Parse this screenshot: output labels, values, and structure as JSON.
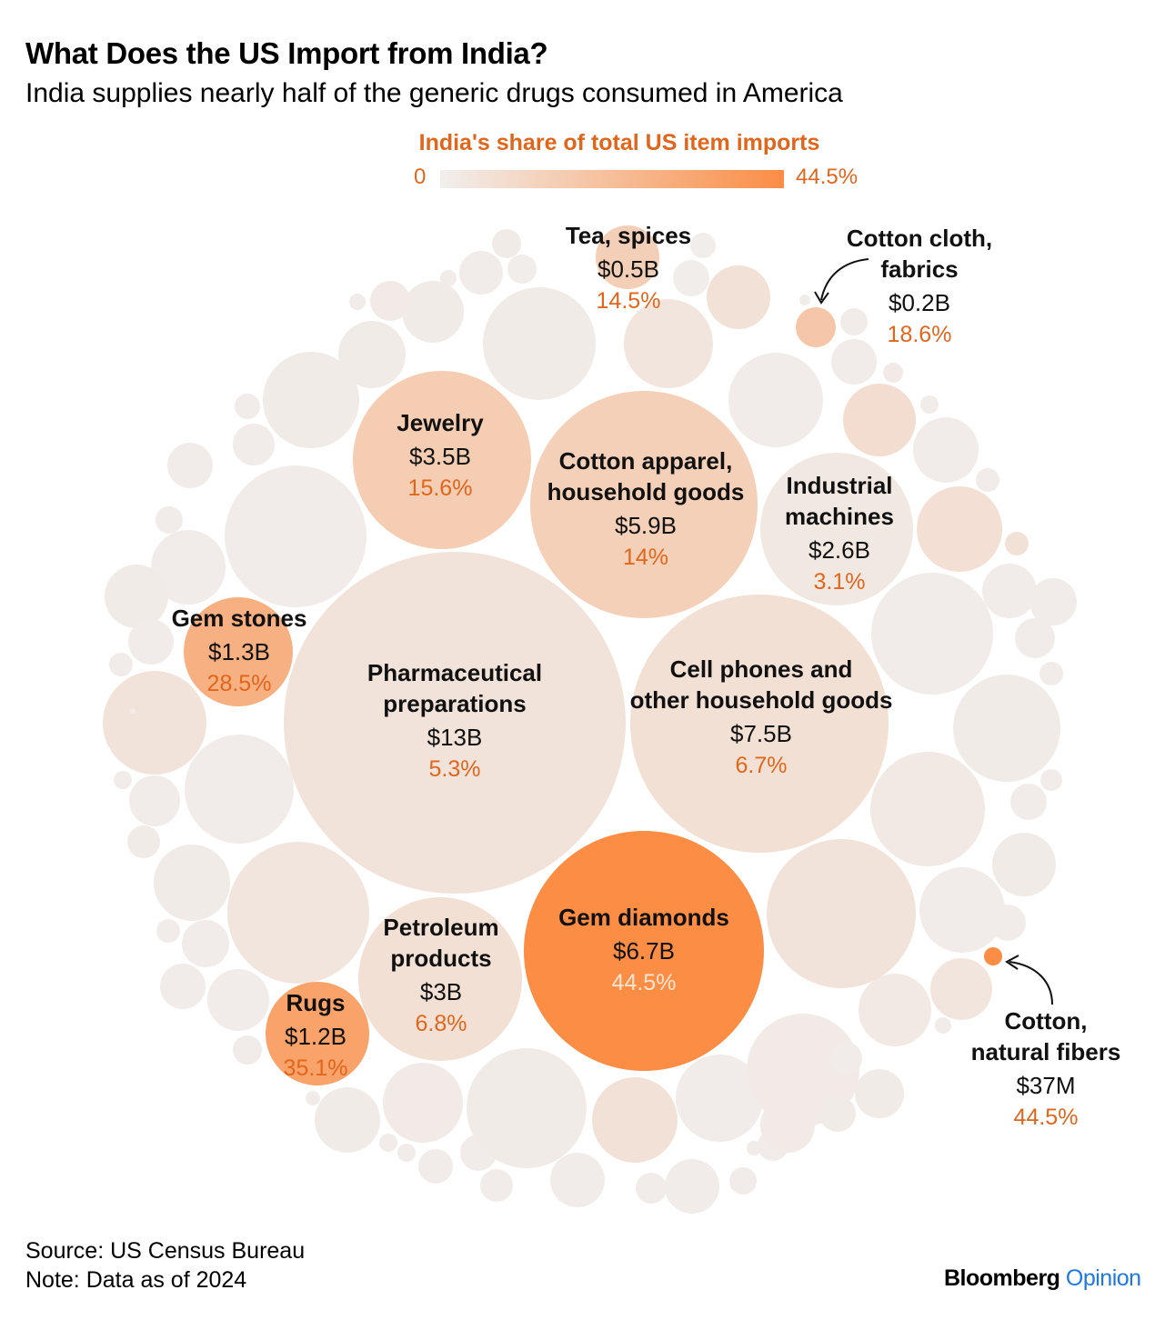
{
  "title": "What Does the US Import from India?",
  "subtitle": "India supplies nearly half of the generic drugs consumed in America",
  "legend": {
    "title": "India's share of total US item imports",
    "min": "0",
    "max": "44.5%",
    "color_min": "#f1efee",
    "color_max": "#fb8d45"
  },
  "footer": {
    "source": "Source: US Census Bureau",
    "note": "Note: Data as of 2024"
  },
  "brand": {
    "name": "Bloomberg",
    "suffix": "Opinion"
  },
  "chart_data": {
    "type": "packed-bubble",
    "size_measure": "US imports from India (value)",
    "color_measure": "India's share of total US item imports (%)",
    "color_range": [
      0,
      44.5
    ],
    "labeled_items": [
      {
        "name": "Pharmaceutical preparations",
        "value": "$13B",
        "share": "5.3%",
        "share_value": 5.3
      },
      {
        "name": "Cell phones and other household goods",
        "value": "$7.5B",
        "share": "6.7%",
        "share_value": 6.7
      },
      {
        "name": "Gem diamonds",
        "value": "$6.7B",
        "share": "44.5%",
        "share_value": 44.5
      },
      {
        "name": "Cotton apparel, household goods",
        "value": "$5.9B",
        "share": "14%",
        "share_value": 14
      },
      {
        "name": "Jewelry",
        "value": "$3.5B",
        "share": "15.6%",
        "share_value": 15.6
      },
      {
        "name": "Petroleum products",
        "value": "$3B",
        "share": "6.8%",
        "share_value": 6.8
      },
      {
        "name": "Industrial machines",
        "value": "$2.6B",
        "share": "3.1%",
        "share_value": 3.1
      },
      {
        "name": "Gem stones",
        "value": "$1.3B",
        "share": "28.5%",
        "share_value": 28.5
      },
      {
        "name": "Rugs",
        "value": "$1.2B",
        "share": "35.1%",
        "share_value": 35.1
      },
      {
        "name": "Tea, spices",
        "value": "$0.5B",
        "share": "14.5%",
        "share_value": 14.5
      },
      {
        "name": "Cotton cloth, fabrics",
        "value": "$0.2B",
        "share": "18.6%",
        "share_value": 18.6
      },
      {
        "name": "Cotton, natural fibers",
        "value": "$37M",
        "share": "44.5%",
        "share_value": 44.5
      }
    ]
  }
}
